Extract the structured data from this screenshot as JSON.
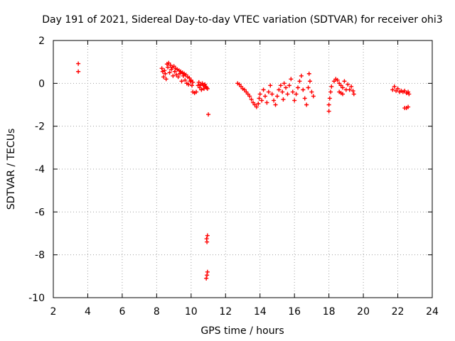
{
  "chart_data": {
    "type": "scatter",
    "title": "Day 191 of 2021, Sidereal Day-to-day VTEC variation (SDTVAR) for receiver ohi3",
    "xlabel": "GPS time / hours",
    "ylabel": "SDTVAR / TECUs",
    "xlim": [
      2,
      24
    ],
    "ylim": [
      -10,
      2
    ],
    "xticks": [
      2,
      4,
      6,
      8,
      10,
      12,
      14,
      16,
      18,
      20,
      22,
      24
    ],
    "yticks": [
      -10,
      -8,
      -6,
      -4,
      -2,
      0,
      2
    ],
    "grid": true,
    "marker": "+",
    "series_color": "#ff0000",
    "series": [
      {
        "name": "SDTVAR",
        "points": [
          [
            3.45,
            0.92
          ],
          [
            3.45,
            0.55
          ],
          [
            8.3,
            0.7
          ],
          [
            8.35,
            0.55
          ],
          [
            8.4,
            0.3
          ],
          [
            8.45,
            0.6
          ],
          [
            8.5,
            0.45
          ],
          [
            8.55,
            0.2
          ],
          [
            8.6,
            0.9
          ],
          [
            8.65,
            0.75
          ],
          [
            8.7,
            0.95
          ],
          [
            8.75,
            0.5
          ],
          [
            8.8,
            0.85
          ],
          [
            8.85,
            0.65
          ],
          [
            8.9,
            0.75
          ],
          [
            8.95,
            0.35
          ],
          [
            9.0,
            0.8
          ],
          [
            9.05,
            0.55
          ],
          [
            9.1,
            0.7
          ],
          [
            9.15,
            0.4
          ],
          [
            9.2,
            0.65
          ],
          [
            9.25,
            0.3
          ],
          [
            9.3,
            0.6
          ],
          [
            9.35,
            0.45
          ],
          [
            9.4,
            0.55
          ],
          [
            9.45,
            0.1
          ],
          [
            9.5,
            0.5
          ],
          [
            9.55,
            0.35
          ],
          [
            9.6,
            0.45
          ],
          [
            9.65,
            0.15
          ],
          [
            9.7,
            0.4
          ],
          [
            9.75,
            0.0
          ],
          [
            9.8,
            0.3
          ],
          [
            9.85,
            -0.05
          ],
          [
            9.9,
            0.25
          ],
          [
            9.95,
            0.1
          ],
          [
            10.0,
            0.15
          ],
          [
            10.05,
            -0.1
          ],
          [
            10.1,
            0.05
          ],
          [
            10.1,
            -0.4
          ],
          [
            10.2,
            -0.45
          ],
          [
            10.3,
            -0.4
          ],
          [
            10.4,
            -0.1
          ],
          [
            10.45,
            0.05
          ],
          [
            10.5,
            -0.2
          ],
          [
            10.55,
            -0.05
          ],
          [
            10.6,
            -0.3
          ],
          [
            10.65,
            0.0
          ],
          [
            10.7,
            -0.1
          ],
          [
            10.75,
            -0.25
          ],
          [
            10.8,
            -0.05
          ],
          [
            10.85,
            -0.15
          ],
          [
            10.9,
            -0.2
          ],
          [
            10.95,
            -0.25
          ],
          [
            11.0,
            -1.45
          ],
          [
            10.95,
            -7.1
          ],
          [
            10.9,
            -7.25
          ],
          [
            10.92,
            -7.4
          ],
          [
            10.95,
            -8.8
          ],
          [
            10.92,
            -8.95
          ],
          [
            10.88,
            -9.1
          ],
          [
            12.7,
            0.0
          ],
          [
            12.8,
            -0.05
          ],
          [
            12.9,
            -0.15
          ],
          [
            13.0,
            -0.25
          ],
          [
            13.1,
            -0.3
          ],
          [
            13.2,
            -0.4
          ],
          [
            13.3,
            -0.5
          ],
          [
            13.4,
            -0.6
          ],
          [
            13.5,
            -0.75
          ],
          [
            13.6,
            -0.9
          ],
          [
            13.7,
            -1.0
          ],
          [
            13.8,
            -1.1
          ],
          [
            13.9,
            -0.95
          ],
          [
            13.95,
            -0.7
          ],
          [
            14.0,
            -0.5
          ],
          [
            14.1,
            -0.8
          ],
          [
            14.2,
            -0.3
          ],
          [
            14.3,
            -0.6
          ],
          [
            14.4,
            -0.9
          ],
          [
            14.5,
            -0.4
          ],
          [
            14.6,
            -0.1
          ],
          [
            14.7,
            -0.5
          ],
          [
            14.8,
            -0.8
          ],
          [
            14.9,
            -1.0
          ],
          [
            15.0,
            -0.6
          ],
          [
            15.1,
            -0.3
          ],
          [
            15.2,
            -0.1
          ],
          [
            15.3,
            -0.4
          ],
          [
            15.35,
            -0.75
          ],
          [
            15.4,
            0.0
          ],
          [
            15.5,
            -0.2
          ],
          [
            15.6,
            -0.5
          ],
          [
            15.7,
            -0.1
          ],
          [
            15.8,
            0.2
          ],
          [
            15.9,
            -0.4
          ],
          [
            16.0,
            -0.8
          ],
          [
            16.1,
            -0.5
          ],
          [
            16.2,
            -0.2
          ],
          [
            16.3,
            0.1
          ],
          [
            16.4,
            0.35
          ],
          [
            16.5,
            -0.3
          ],
          [
            16.6,
            -0.7
          ],
          [
            16.7,
            -1.0
          ],
          [
            16.8,
            -0.2
          ],
          [
            16.85,
            0.45
          ],
          [
            16.9,
            0.1
          ],
          [
            17.0,
            -0.4
          ],
          [
            17.1,
            -0.6
          ],
          [
            18.0,
            -1.3
          ],
          [
            18.0,
            -1.0
          ],
          [
            18.05,
            -0.7
          ],
          [
            18.1,
            -0.4
          ],
          [
            18.15,
            -0.15
          ],
          [
            18.3,
            0.1
          ],
          [
            18.4,
            0.2
          ],
          [
            18.5,
            0.15
          ],
          [
            18.6,
            0.0
          ],
          [
            18.7,
            -0.1
          ],
          [
            18.8,
            -0.2
          ],
          [
            18.9,
            0.1
          ],
          [
            19.0,
            -0.3
          ],
          [
            19.1,
            -0.05
          ],
          [
            19.2,
            -0.3
          ],
          [
            19.3,
            -0.15
          ],
          [
            19.4,
            -0.35
          ],
          [
            19.45,
            -0.5
          ],
          [
            18.6,
            -0.4
          ],
          [
            18.7,
            -0.45
          ],
          [
            18.8,
            -0.5
          ],
          [
            21.7,
            -0.3
          ],
          [
            21.8,
            -0.15
          ],
          [
            21.9,
            -0.35
          ],
          [
            22.0,
            -0.25
          ],
          [
            22.1,
            -0.4
          ],
          [
            22.2,
            -0.35
          ],
          [
            22.3,
            -0.4
          ],
          [
            22.4,
            -0.35
          ],
          [
            22.5,
            -0.45
          ],
          [
            22.6,
            -0.4
          ],
          [
            22.65,
            -0.5
          ],
          [
            22.4,
            -1.15
          ],
          [
            22.5,
            -1.15
          ],
          [
            22.6,
            -1.1
          ]
        ]
      }
    ]
  }
}
